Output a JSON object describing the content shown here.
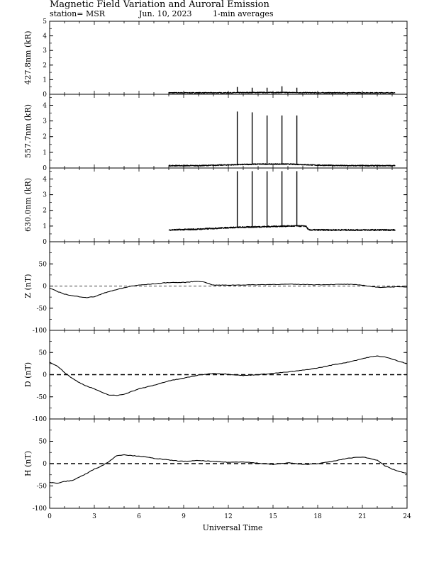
{
  "header": {
    "title": "Magnetic Field Variation and Auroral Emission",
    "station": "station= MSR",
    "date": "Jun. 10, 2023",
    "averaging": "1-min averages"
  },
  "chart_data": [
    {
      "type": "line",
      "ylabel": "427.8nm (kR)",
      "ylim": [
        0,
        5
      ],
      "yticks": [
        0,
        1,
        2,
        3,
        4,
        5
      ],
      "baseline": null,
      "series": [
        {
          "x": [
            8.0,
            10,
            12,
            14,
            16,
            18,
            20,
            22,
            23.2
          ],
          "y": [
            0.1,
            0.1,
            0.1,
            0.12,
            0.12,
            0.1,
            0.1,
            0.1,
            0.1
          ]
        }
      ],
      "noise": 0.06,
      "spikes": [
        {
          "x": 12.6,
          "y": 0.5
        },
        {
          "x": 13.6,
          "y": 0.45
        },
        {
          "x": 14.6,
          "y": 0.45
        },
        {
          "x": 15.6,
          "y": 0.55
        },
        {
          "x": 16.6,
          "y": 0.45
        }
      ]
    },
    {
      "type": "line",
      "ylabel": "557.7nm (kR)",
      "ylim": [
        0,
        4.7
      ],
      "yticks": [
        0,
        1,
        2,
        3,
        4
      ],
      "baseline": null,
      "series": [
        {
          "x": [
            8.0,
            10,
            12,
            14,
            16,
            17,
            18,
            20,
            22,
            23.2
          ],
          "y": [
            0.15,
            0.15,
            0.2,
            0.25,
            0.25,
            0.22,
            0.18,
            0.15,
            0.15,
            0.15
          ]
        }
      ],
      "noise": 0.06,
      "spikes": [
        {
          "x": 12.6,
          "y": 3.6
        },
        {
          "x": 13.6,
          "y": 3.55
        },
        {
          "x": 14.6,
          "y": 3.35
        },
        {
          "x": 15.6,
          "y": 3.35
        },
        {
          "x": 16.6,
          "y": 3.35
        }
      ]
    },
    {
      "type": "line",
      "ylabel": "630.0nm (kR)",
      "ylim": [
        0,
        4.7
      ],
      "yticks": [
        0,
        1,
        2,
        3,
        4
      ],
      "baseline": null,
      "series": [
        {
          "x": [
            8.0,
            10,
            12,
            14,
            16,
            17.2,
            17.4,
            20,
            23.2
          ],
          "y": [
            0.75,
            0.8,
            0.9,
            0.95,
            1.0,
            1.0,
            0.75,
            0.75,
            0.75
          ]
        }
      ],
      "noise": 0.08,
      "spikes": [
        {
          "x": 12.6,
          "y": 4.5
        },
        {
          "x": 13.6,
          "y": 4.5
        },
        {
          "x": 14.6,
          "y": 4.5
        },
        {
          "x": 15.6,
          "y": 4.5
        },
        {
          "x": 16.6,
          "y": 4.5
        }
      ]
    },
    {
      "type": "line",
      "ylabel": "Z (nT)",
      "ylim": [
        -100,
        100
      ],
      "yticks": [
        -100,
        -50,
        0,
        50
      ],
      "baseline": "thin-dashed",
      "series": [
        {
          "x": [
            0,
            0.5,
            1,
            1.5,
            2,
            2.5,
            3,
            3.5,
            4,
            4.5,
            5,
            5.5,
            6,
            7,
            8,
            9,
            10,
            10.5,
            11,
            12,
            14,
            16,
            18,
            20,
            21,
            22,
            23,
            24
          ],
          "y": [
            -5,
            -12,
            -18,
            -22,
            -24,
            -26,
            -24,
            -18,
            -12,
            -8,
            -4,
            0,
            2,
            5,
            8,
            8,
            11,
            8,
            2,
            2,
            3,
            4,
            3,
            4,
            2,
            -3,
            -2,
            -2
          ]
        }
      ],
      "noise": 0,
      "spikes": []
    },
    {
      "type": "line",
      "ylabel": "D (nT)",
      "ylim": [
        -100,
        100
      ],
      "yticks": [
        -100,
        -50,
        0,
        50
      ],
      "baseline": "thick-dashed",
      "series": [
        {
          "x": [
            0,
            0.5,
            1,
            1.5,
            2,
            2.5,
            3,
            3.5,
            4,
            4.5,
            5,
            5.5,
            6,
            7,
            8,
            9,
            10,
            11,
            12,
            13,
            14,
            15,
            16,
            17,
            18,
            19,
            20,
            21,
            21.5,
            22,
            22.5,
            23,
            23.5,
            24
          ],
          "y": [
            28,
            20,
            5,
            -8,
            -18,
            -26,
            -32,
            -40,
            -46,
            -47,
            -44,
            -38,
            -32,
            -24,
            -14,
            -8,
            -1,
            3,
            1,
            -2,
            0,
            3,
            6,
            10,
            15,
            22,
            28,
            36,
            40,
            42,
            40,
            35,
            30,
            25
          ]
        }
      ],
      "noise": 0,
      "spikes": []
    },
    {
      "type": "line",
      "ylabel": "H (nT)",
      "ylim": [
        -100,
        100
      ],
      "yticks": [
        -100,
        -50,
        0,
        50
      ],
      "baseline": "thick-dashed",
      "series": [
        {
          "x": [
            0,
            0.5,
            1,
            1.5,
            2,
            2.5,
            3,
            3.5,
            4,
            4.5,
            5,
            5.5,
            6,
            7,
            8,
            9,
            10,
            11,
            12,
            13,
            14,
            15,
            16,
            17,
            18,
            19,
            20,
            21,
            22,
            22.5,
            23,
            23.5,
            24
          ],
          "y": [
            -42,
            -44,
            -40,
            -38,
            -30,
            -22,
            -12,
            -5,
            5,
            18,
            20,
            18,
            17,
            12,
            8,
            5,
            7,
            5,
            3,
            4,
            1,
            -2,
            2,
            -2,
            0,
            5,
            12,
            15,
            8,
            -5,
            -12,
            -18,
            -22
          ]
        }
      ],
      "noise": 0,
      "spikes": []
    }
  ],
  "x_axis": {
    "label": "Universal Time",
    "xlim": [
      0,
      24
    ],
    "ticks": [
      "0",
      "3",
      "6",
      "9",
      "12",
      "15",
      "18",
      "21",
      "24"
    ]
  }
}
